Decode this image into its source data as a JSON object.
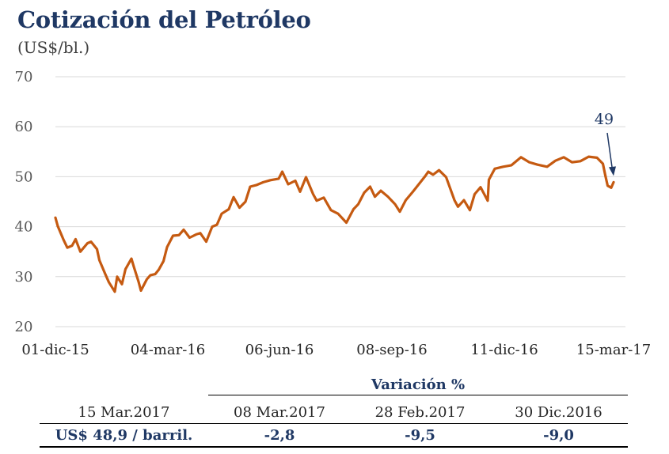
{
  "header": {
    "title": "Cotización del Petróleo",
    "subtitle": "(US$/bl.)"
  },
  "chart_data": {
    "type": "line",
    "title": "Cotización del Petróleo",
    "ylabel": "(US$/bl.)",
    "ylim": [
      20,
      70
    ],
    "yticks": [
      "70",
      "60",
      "50",
      "40",
      "30",
      "20"
    ],
    "xticks": [
      "01-dic-15",
      "04-mar-16",
      "06-jun-16",
      "08-sep-16",
      "11-dic-16",
      "15-mar-17"
    ],
    "xlim": [
      "2015-12-01",
      "2017-03-15"
    ],
    "grid": true,
    "color": "#c55a11",
    "annotation": {
      "text": "49",
      "x": "2017-03-15",
      "y": 48.9
    },
    "series": [
      {
        "x": [
          "2015-12-01",
          "2015-12-03",
          "2015-12-08",
          "2015-12-11",
          "2015-12-15",
          "2015-12-18",
          "2015-12-22",
          "2015-12-28",
          "2015-12-31",
          "2016-01-05",
          "2016-01-07",
          "2016-01-12",
          "2016-01-15",
          "2016-01-20",
          "2016-01-22",
          "2016-01-26",
          "2016-01-29",
          "2016-02-03",
          "2016-02-05",
          "2016-02-09",
          "2016-02-11",
          "2016-02-16",
          "2016-02-19",
          "2016-02-23",
          "2016-02-26",
          "2016-03-01",
          "2016-03-04",
          "2016-03-09",
          "2016-03-14",
          "2016-03-18",
          "2016-03-23",
          "2016-03-29",
          "2016-04-01",
          "2016-04-06",
          "2016-04-11",
          "2016-04-15",
          "2016-04-19",
          "2016-04-25",
          "2016-04-29",
          "2016-05-04",
          "2016-05-09",
          "2016-05-13",
          "2016-05-18",
          "2016-05-24",
          "2016-05-30",
          "2016-06-06",
          "2016-06-09",
          "2016-06-14",
          "2016-06-20",
          "2016-06-24",
          "2016-06-29",
          "2016-07-05",
          "2016-07-08",
          "2016-07-14",
          "2016-07-20",
          "2016-07-26",
          "2016-08-02",
          "2016-08-08",
          "2016-08-12",
          "2016-08-17",
          "2016-08-22",
          "2016-08-26",
          "2016-08-31",
          "2016-09-06",
          "2016-09-12",
          "2016-09-16",
          "2016-09-21",
          "2016-09-27",
          "2016-10-03",
          "2016-10-07",
          "2016-10-10",
          "2016-10-14",
          "2016-10-19",
          "2016-10-25",
          "2016-11-01",
          "2016-11-04",
          "2016-11-09",
          "2016-11-14",
          "2016-11-18",
          "2016-11-23",
          "2016-11-29",
          "2016-11-30",
          "2016-12-05",
          "2016-12-12",
          "2016-12-19",
          "2016-12-27",
          "2017-01-03",
          "2017-01-10",
          "2017-01-18",
          "2017-01-25",
          "2017-02-01",
          "2017-02-08",
          "2017-02-15",
          "2017-02-22",
          "2017-03-01",
          "2017-03-06",
          "2017-03-08",
          "2017-03-10",
          "2017-03-13",
          "2017-03-15"
        ],
        "values": [
          41.8,
          40.1,
          37.3,
          35.8,
          36.2,
          37.5,
          35.0,
          36.7,
          37.0,
          35.5,
          33.3,
          30.5,
          28.9,
          27.0,
          30.0,
          28.5,
          31.5,
          33.6,
          32.0,
          29.0,
          27.2,
          29.5,
          30.3,
          30.5,
          31.4,
          33.1,
          35.9,
          38.2,
          38.3,
          39.4,
          37.8,
          38.5,
          38.7,
          37.0,
          40.0,
          40.4,
          42.6,
          43.5,
          45.9,
          43.8,
          45.0,
          48.0,
          48.3,
          48.9,
          49.3,
          49.6,
          51.0,
          48.5,
          49.2,
          47.0,
          49.9,
          46.5,
          45.2,
          45.8,
          43.3,
          42.6,
          40.8,
          43.5,
          44.5,
          46.8,
          48.0,
          46.0,
          47.2,
          46.0,
          44.5,
          43.0,
          45.3,
          47.0,
          48.8,
          50.0,
          51.0,
          50.4,
          51.3,
          49.9,
          45.3,
          44.0,
          45.3,
          43.3,
          46.5,
          47.9,
          45.2,
          49.4,
          51.6,
          52.0,
          52.3,
          53.9,
          52.9,
          52.4,
          52.0,
          53.2,
          53.9,
          52.9,
          53.1,
          54.0,
          53.8,
          52.6,
          50.3,
          48.2,
          47.8,
          48.9
        ]
      }
    ]
  },
  "table": {
    "variation_header": "Variación %",
    "columns": [
      "15 Mar.2017",
      "08 Mar.2017",
      "28 Feb.2017",
      "30 Dic.2016"
    ],
    "values": [
      "US$ 48,9 / barril.",
      "-2,8",
      "-9,5",
      "-9,0"
    ]
  }
}
